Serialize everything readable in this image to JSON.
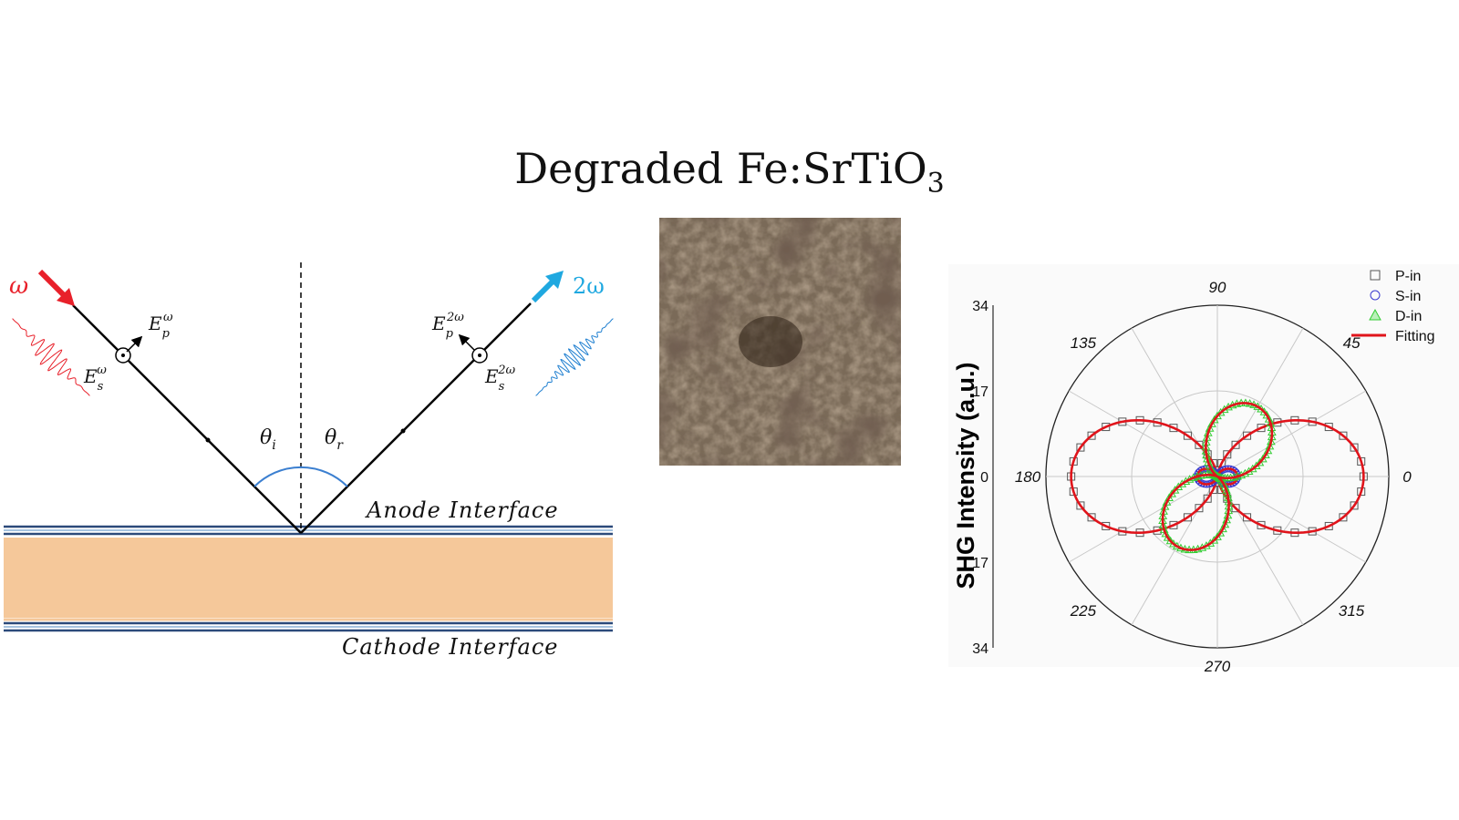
{
  "title": {
    "main": "Degraded Fe:SrTiO",
    "sub": "3"
  },
  "geometry_diagram": {
    "incident_label": "ω",
    "reflected_label": "2ω",
    "incident_fields": {
      "p": "E",
      "p_sup": "ω",
      "p_sub": "p",
      "s": "E",
      "s_sup": "ω",
      "s_sub": "s"
    },
    "reflected_fields": {
      "p": "E",
      "p_sup": "2ω",
      "p_sub": "p",
      "s": "E",
      "s_sup": "2ω",
      "s_sub": "s"
    },
    "angle_incident": {
      "symbol": "θ",
      "sub": "i"
    },
    "angle_reflected": {
      "symbol": "θ",
      "sub": "r"
    },
    "anode_label": "Anode Interface",
    "cathode_label": "Cathode Interface",
    "colors": {
      "incident": "#e8202a",
      "reflected": "#1fa8e0",
      "arc": "#3b7fd0",
      "sample": "#f5c89a",
      "interface": "#2c4a7a"
    }
  },
  "chart_data": {
    "type": "polar",
    "ylabel": "SHG Intensity (a.u.)",
    "radial_ticks": [
      "34",
      "17",
      "0",
      "17",
      "34"
    ],
    "rmax": 34,
    "angle_ticks": [
      {
        "deg": 0,
        "label": "0"
      },
      {
        "deg": 45,
        "label": "45"
      },
      {
        "deg": 90,
        "label": "90"
      },
      {
        "deg": 135,
        "label": "135"
      },
      {
        "deg": 180,
        "label": "180"
      },
      {
        "deg": 225,
        "label": "225"
      },
      {
        "deg": 270,
        "label": "270"
      },
      {
        "deg": 315,
        "label": "315"
      }
    ],
    "legend": [
      "P-in",
      "S-in",
      "D-in",
      "Fitting"
    ],
    "legend_position": "top-right",
    "series": [
      {
        "name": "P-in",
        "marker": "square",
        "color": "#555555",
        "peak": 29,
        "axis_deg": 0,
        "lobes": 2
      },
      {
        "name": "S-in",
        "marker": "circle",
        "color": "#3a3ad0",
        "peak": 4,
        "axis_deg": 0,
        "lobes": 2
      },
      {
        "name": "D-in",
        "marker": "triangle",
        "color": "#33cc33",
        "peak": 16,
        "axis_deg": 60,
        "lobes": 2
      },
      {
        "name": "Fitting",
        "marker": "line",
        "color": "#e0141b"
      }
    ]
  }
}
